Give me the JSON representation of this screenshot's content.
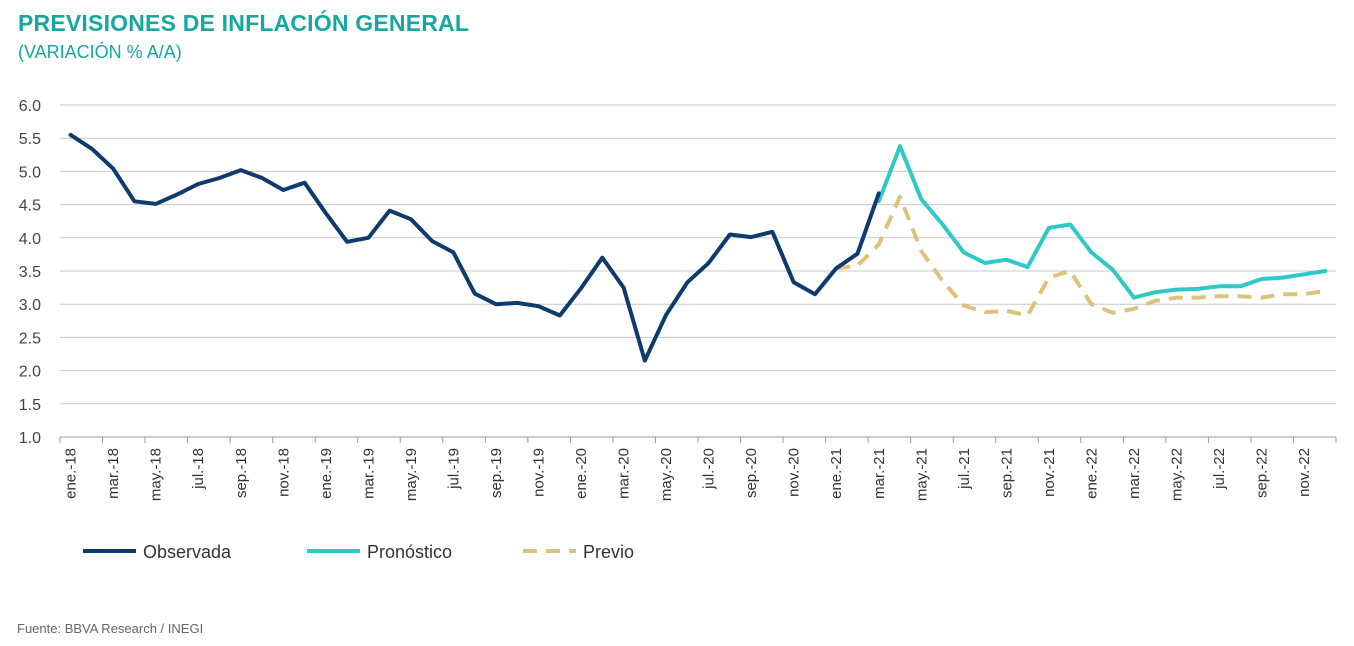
{
  "header": {
    "title": "PREVISIONES DE INFLACIÓN GENERAL",
    "subtitle": "(VARIACIÓN % A/A)"
  },
  "footer": {
    "source": "Fuente: BBVA Research / INEGI"
  },
  "chart_data": {
    "type": "line",
    "title": "PREVISIONES DE INFLACIÓN GENERAL",
    "subtitle": "(VARIACIÓN % A/A)",
    "xlabel": "",
    "ylabel": "",
    "ylim": [
      1.0,
      6.0
    ],
    "yticks": [
      "6.0",
      "5.5",
      "5.0",
      "4.5",
      "4.0",
      "3.5",
      "3.0",
      "2.5",
      "2.0",
      "1.5",
      "1.0"
    ],
    "grid": true,
    "legend_position": "bottom-left",
    "x_labels": [
      "ene.-18",
      "mar.-18",
      "may.-18",
      "jul.-18",
      "sep.-18",
      "nov.-18",
      "ene.-19",
      "mar.-19",
      "may.-19",
      "jul.-19",
      "sep.-19",
      "nov.-19",
      "ene.-20",
      "mar.-20",
      "may.-20",
      "jul.-20",
      "sep.-20",
      "nov.-20",
      "ene.-21",
      "mar.-21",
      "may.-21",
      "jul.-21",
      "sep.-21",
      "nov.-21",
      "ene.-22",
      "mar.-22",
      "may.-22",
      "jul.-22",
      "sep.-22",
      "nov.-22"
    ],
    "series": [
      {
        "name": "Observada",
        "color": "#0e3a6e",
        "style": "solid",
        "start_month": "ene.-18",
        "values": [
          5.55,
          5.34,
          5.04,
          4.55,
          4.51,
          4.65,
          4.81,
          4.9,
          5.02,
          4.9,
          4.72,
          4.83,
          4.37,
          3.94,
          4.0,
          4.41,
          4.28,
          3.95,
          3.78,
          3.16,
          3.0,
          3.02,
          2.97,
          2.83,
          3.24,
          3.7,
          3.25,
          2.15,
          2.84,
          3.33,
          3.62,
          4.05,
          4.01,
          4.09,
          3.33,
          3.15,
          3.54,
          3.76,
          4.67
        ]
      },
      {
        "name": "Pronóstico",
        "color": "#2ec9c6",
        "style": "solid",
        "start_month": "mar.-21",
        "values": [
          4.55,
          5.38,
          4.58,
          4.2,
          3.78,
          3.62,
          3.67,
          3.56,
          4.15,
          4.2,
          3.78,
          3.52,
          3.1,
          3.18,
          3.22,
          3.23,
          3.27,
          3.27,
          3.38,
          3.4,
          3.45,
          3.5
        ]
      },
      {
        "name": "Previo",
        "color": "#dcc27a",
        "style": "dashed",
        "start_month": "ene.-21",
        "values": [
          3.54,
          3.58,
          3.9,
          4.62,
          3.8,
          3.35,
          2.98,
          2.88,
          2.9,
          2.83,
          3.4,
          3.5,
          3.0,
          2.87,
          2.93,
          3.05,
          3.1,
          3.1,
          3.12,
          3.12,
          3.1,
          3.15,
          3.15,
          3.2
        ]
      }
    ]
  }
}
